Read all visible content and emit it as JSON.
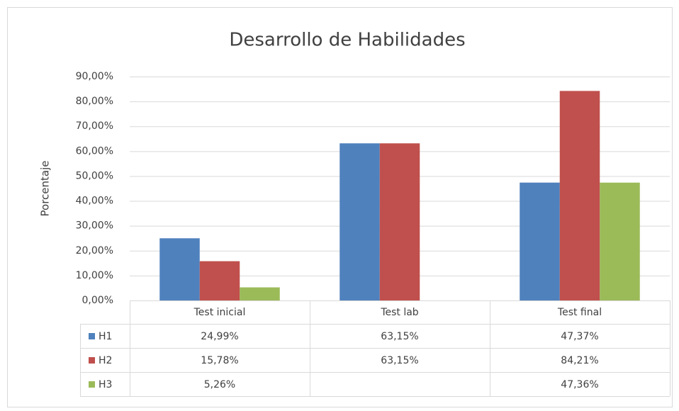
{
  "chart_data": {
    "type": "bar",
    "title": "Desarrollo de Habilidades",
    "y_label": "Porcentaje",
    "categories": [
      "Test inicial",
      "Test lab",
      "Test final"
    ],
    "series": [
      {
        "name": "H1",
        "color": "#4f81bd",
        "values": [
          24.99,
          63.15,
          47.37
        ],
        "value_labels": [
          "24,99%",
          "63,15%",
          "47,37%"
        ]
      },
      {
        "name": "H2",
        "color": "#c0504d",
        "values": [
          15.78,
          63.15,
          84.21
        ],
        "value_labels": [
          "15,78%",
          "63,15%",
          "84,21%"
        ]
      },
      {
        "name": "H3",
        "color": "#9bbb59",
        "values": [
          5.26,
          null,
          47.36
        ],
        "value_labels": [
          "5,26%",
          null,
          "47,36%"
        ]
      }
    ],
    "ylim": [
      0,
      90
    ],
    "yticks": [
      {
        "value": 0,
        "label": "0,00%"
      },
      {
        "value": 10,
        "label": "10,00%"
      },
      {
        "value": 20,
        "label": "20,00%"
      },
      {
        "value": 30,
        "label": "30,00%"
      },
      {
        "value": 40,
        "label": "40,00%"
      },
      {
        "value": 50,
        "label": "50,00%"
      },
      {
        "value": 60,
        "label": "60,00%"
      },
      {
        "value": 70,
        "label": "70,00%"
      },
      {
        "value": 80,
        "label": "80,00%"
      },
      {
        "value": 90,
        "label": "90,00%"
      }
    ],
    "grid": true,
    "data_table": true
  }
}
